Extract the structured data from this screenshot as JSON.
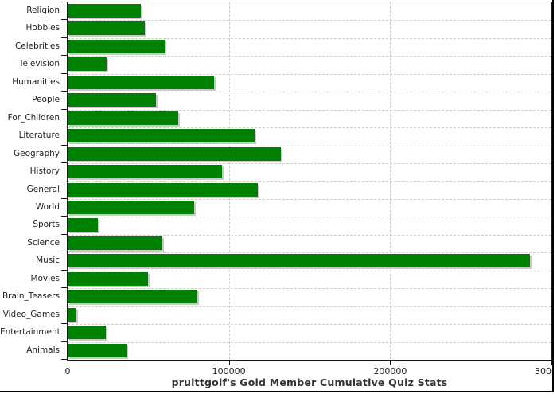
{
  "title": "pruittgolf's Gold Member Cumulative Quiz Stats",
  "colors": {
    "bar": "#008000",
    "bar_shadow": "#c9c9c9",
    "grid": "#cdcdcd",
    "axis": "#1a1a1a",
    "label_text": "#222222",
    "title_text": "#333333",
    "background": "#ffffff"
  },
  "chart_data": {
    "type": "bar",
    "orientation": "horizontal",
    "title": "pruittgolf's Gold Member Cumulative Quiz Stats",
    "xlabel": "",
    "ylabel": "",
    "xlim": [
      0,
      300000
    ],
    "x_ticks": [
      0,
      100000,
      200000,
      300000
    ],
    "x_tick_labels": [
      "0",
      "100000",
      "200000",
      "300000"
    ],
    "grid": "dashed",
    "legend": "none",
    "categories": [
      "Religion",
      "Hobbies",
      "Celebrities",
      "Television",
      "Humanities",
      "People",
      "For_Children",
      "Literature",
      "Geography",
      "History",
      "General",
      "World",
      "Sports",
      "Science",
      "Music",
      "Movies",
      "Brain_Teasers",
      "Video_Games",
      "Entertainment",
      "Animals"
    ],
    "values": [
      45400,
      47900,
      60400,
      24000,
      90600,
      55000,
      68400,
      115800,
      132100,
      95600,
      117800,
      78400,
      18800,
      58700,
      286800,
      49600,
      80300,
      5400,
      23900,
      36500
    ]
  }
}
